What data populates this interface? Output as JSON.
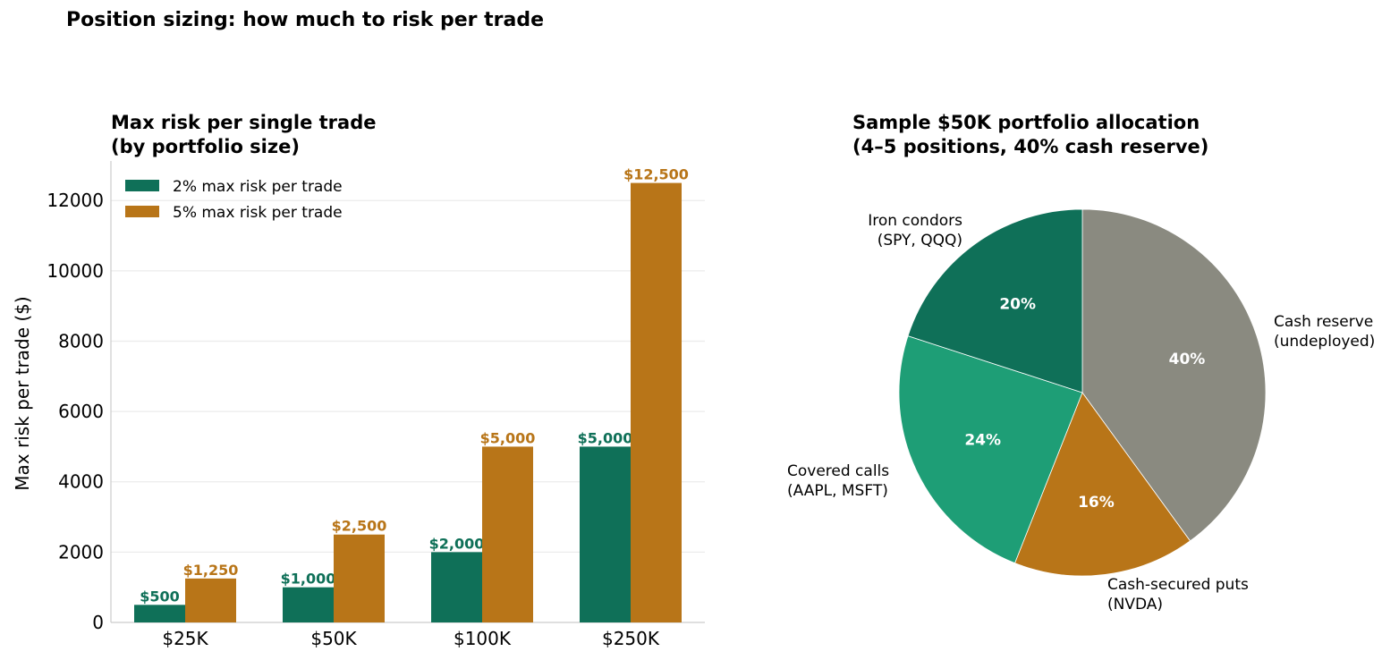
{
  "figure": {
    "title": "Position sizing: how much to risk per trade"
  },
  "chart_data": [
    {
      "type": "bar",
      "title": "Max risk per single trade\n(by portfolio size)",
      "xlabel": "",
      "ylabel": "Max risk per trade ($)",
      "categories": [
        "$25K",
        "$50K",
        "$100K",
        "$250K"
      ],
      "ylim": [
        0,
        13125
      ],
      "yticks": [
        0,
        2000,
        4000,
        6000,
        8000,
        10000,
        12000
      ],
      "grid": "y",
      "legend_position": "top-left",
      "series": [
        {
          "name": "2% max risk per trade",
          "color": "#0f7058",
          "values": [
            500,
            1000,
            2000,
            5000
          ],
          "labels": [
            "$500",
            "$1,000",
            "$2,000",
            "$5,000"
          ]
        },
        {
          "name": "5% max risk per trade",
          "color": "#b87518",
          "values": [
            1250,
            2500,
            5000,
            12500
          ],
          "labels": [
            "$1,250",
            "$2,500",
            "$5,000",
            "$12,500"
          ]
        }
      ]
    },
    {
      "type": "pie",
      "title": "Sample $50K portfolio allocation\n(4–5 positions, 40% cash reserve)",
      "slices": [
        {
          "label": "Cash reserve\n(undeployed)",
          "value": 40,
          "pct_label": "40%",
          "color": "#8a8a80"
        },
        {
          "label": "Cash-secured puts\n(NVDA)",
          "value": 16,
          "pct_label": "16%",
          "color": "#b87518"
        },
        {
          "label": "Covered calls\n(AAPL, MSFT)",
          "value": 24,
          "pct_label": "24%",
          "color": "#1e9e76"
        },
        {
          "label": "Iron condors\n(SPY, QQQ)",
          "value": 20,
          "pct_label": "20%",
          "color": "#0f7058"
        }
      ]
    }
  ]
}
